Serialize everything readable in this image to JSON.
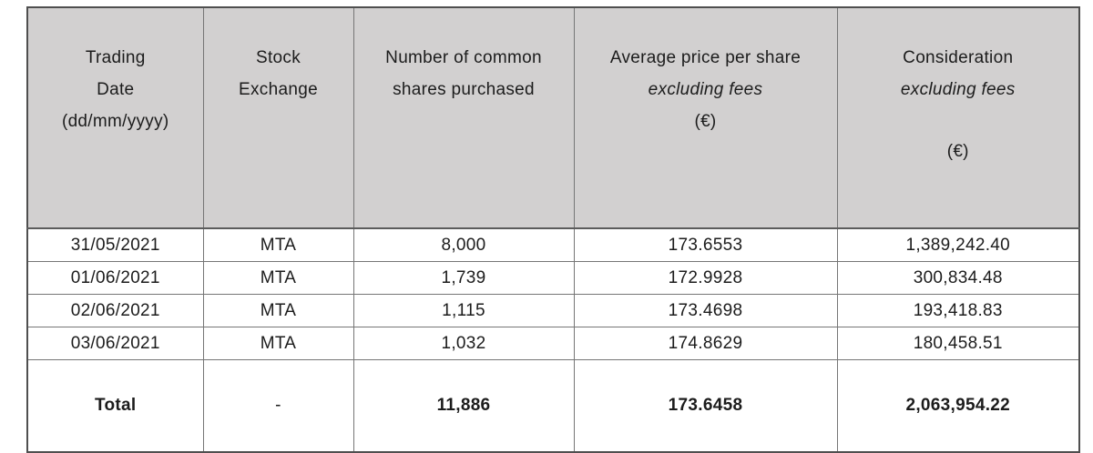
{
  "colors": {
    "header_bg": "#d2d0d0",
    "border_outer": "#4f4f4f",
    "border_inner": "#767676",
    "text": "#1c1c1c"
  },
  "table": {
    "columns": [
      {
        "l1": "Trading",
        "l2": "Date",
        "l3": "(dd/mm/yyyy)"
      },
      {
        "l1": "Stock",
        "l2": "Exchange"
      },
      {
        "l1": "Number of common",
        "l2": "shares purchased"
      },
      {
        "l1": "Average price per share",
        "l2": "excluding fees",
        "l3": "(€)"
      },
      {
        "l1": "Consideration",
        "l2": "excluding fees",
        "l3": "(€)"
      }
    ],
    "rows": [
      {
        "date": "31/05/2021",
        "exchange": "MTA",
        "shares": "8,000",
        "avg_price": "173.6553",
        "consideration": "1,389,242.40"
      },
      {
        "date": "01/06/2021",
        "exchange": "MTA",
        "shares": "1,739",
        "avg_price": "172.9928",
        "consideration": "300,834.48"
      },
      {
        "date": "02/06/2021",
        "exchange": "MTA",
        "shares": "1,115",
        "avg_price": "173.4698",
        "consideration": "193,418.83"
      },
      {
        "date": "03/06/2021",
        "exchange": "MTA",
        "shares": "1,032",
        "avg_price": "174.8629",
        "consideration": "180,458.51"
      }
    ],
    "total": {
      "label": "Total",
      "exchange": "-",
      "shares": "11,886",
      "avg_price": "173.6458",
      "consideration": "2,063,954.22"
    }
  }
}
